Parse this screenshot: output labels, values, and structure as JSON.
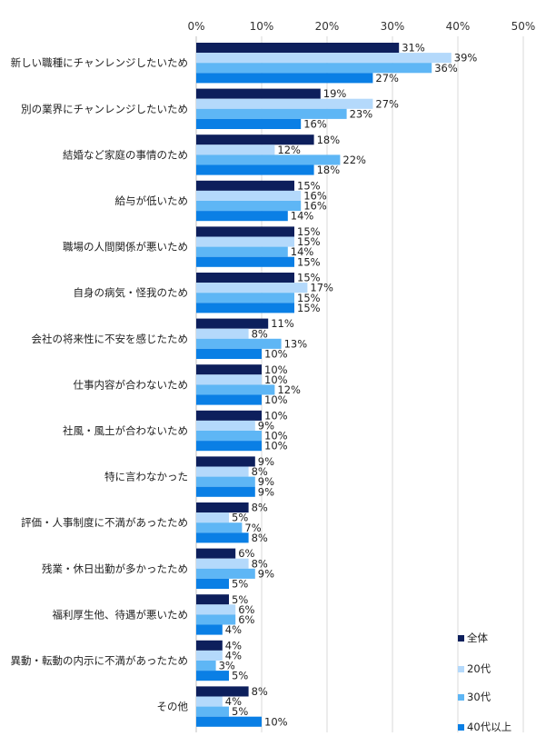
{
  "chart_data": {
    "type": "bar",
    "orientation": "horizontal",
    "xlim": [
      0,
      50
    ],
    "x_ticks": [
      "0%",
      "10%",
      "20%",
      "30%",
      "40%",
      "50%"
    ],
    "value_suffix": "%",
    "grid": "vertical lines at each tick",
    "legend_position": "bottom-right",
    "categories": [
      "新しい職種にチャンレンジしたいため",
      "別の業界にチャンレンジしたいため",
      "結婚など家庭の事情のため",
      "給与が低いため",
      "職場の人間関係が悪いため",
      "自身の病気・怪我のため",
      "会社の将来性に不安を感じたため",
      "仕事内容が合わないため",
      "社風・風土が合わないため",
      "特に言わなかった",
      "評価・人事制度に不満があったため",
      "残業・休日出勤が多かったため",
      "福利厚生他、待遇が悪いため",
      "異動・転動の内示に不満があったため",
      "その他"
    ],
    "series": [
      {
        "name": "全体",
        "color": "#0d1f5c",
        "values": [
          31,
          19,
          18,
          15,
          15,
          15,
          11,
          10,
          10,
          9,
          8,
          6,
          5,
          4,
          8
        ]
      },
      {
        "name": "20代",
        "color": "#b4d9fb",
        "values": [
          39,
          27,
          12,
          16,
          15,
          17,
          8,
          10,
          9,
          8,
          5,
          8,
          6,
          4,
          4
        ]
      },
      {
        "name": "30代",
        "color": "#5eb6f5",
        "values": [
          36,
          23,
          22,
          16,
          14,
          15,
          13,
          12,
          10,
          9,
          7,
          9,
          6,
          3,
          5
        ]
      },
      {
        "name": "40代以上",
        "color": "#0a7fe5",
        "values": [
          27,
          16,
          18,
          14,
          15,
          15,
          10,
          10,
          10,
          9,
          8,
          5,
          4,
          5,
          10
        ]
      }
    ]
  }
}
